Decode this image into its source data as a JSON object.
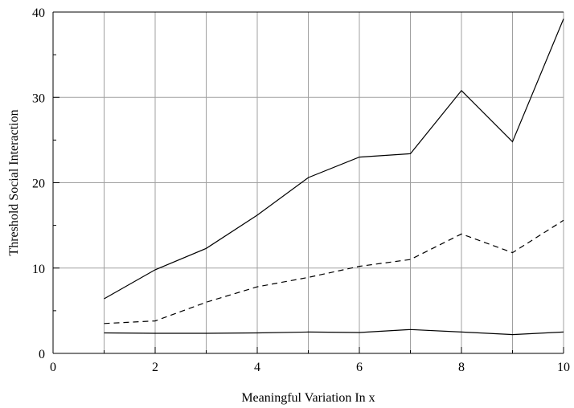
{
  "chart_data": {
    "type": "line",
    "title": "",
    "xlabel": "Meaningful Variation In x",
    "ylabel": "Threshold Social Interaction",
    "xlim": [
      0,
      10
    ],
    "ylim": [
      0,
      40
    ],
    "xticks": [
      0,
      2,
      4,
      6,
      8,
      10
    ],
    "yticks": [
      0,
      10,
      20,
      30,
      40
    ],
    "grid": true,
    "legend": false,
    "x": [
      1,
      2,
      3,
      4,
      5,
      6,
      7,
      8,
      9,
      10
    ],
    "series": [
      {
        "style": "solid",
        "color": "#000000",
        "values": [
          6.4,
          9.8,
          12.3,
          16.2,
          20.6,
          23.0,
          23.4,
          30.8,
          24.8,
          39.2
        ]
      },
      {
        "style": "dashed",
        "color": "#000000",
        "values": [
          3.5,
          3.8,
          6.0,
          7.8,
          8.9,
          10.2,
          11.0,
          14.0,
          11.8,
          15.6
        ]
      },
      {
        "style": "solid",
        "color": "#000000",
        "values": [
          2.4,
          2.35,
          2.35,
          2.4,
          2.5,
          2.45,
          2.8,
          2.5,
          2.2,
          2.5
        ]
      }
    ]
  }
}
